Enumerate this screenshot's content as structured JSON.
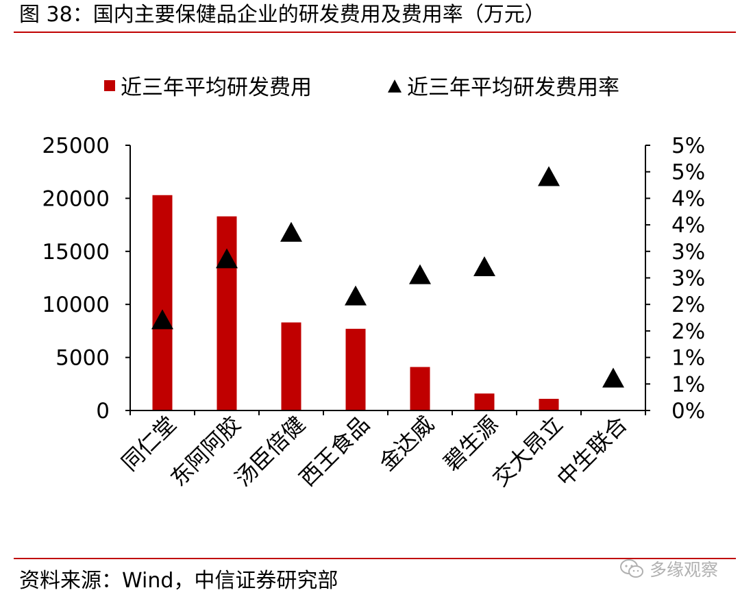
{
  "figure": {
    "title": "图 38：国内主要保健品企业的研发费用及费用率（万元）",
    "source": "资料来源：Wind，中信证券研究部",
    "watermark": "多缘观察"
  },
  "colors": {
    "bar": "#c00000",
    "marker": "#000000",
    "rule": "#c00000"
  },
  "chart_data": {
    "type": "bar",
    "categories": [
      "同仁堂",
      "东阿阿胶",
      "汤臣倍健",
      "西王食品",
      "金达威",
      "碧生源",
      "交大昂立",
      "中生联合"
    ],
    "series": [
      {
        "name": "近三年平均研发费用",
        "type": "bar",
        "axis": "left",
        "values": [
          20300,
          18300,
          8300,
          7700,
          4100,
          1600,
          1100,
          0
        ]
      },
      {
        "name": "近三年平均研发费用率",
        "type": "scatter",
        "marker": "triangle",
        "axis": "right",
        "values": [
          1.7,
          2.85,
          3.35,
          2.15,
          2.55,
          2.7,
          4.4,
          0.6
        ]
      }
    ],
    "y_left": {
      "ylim": [
        0,
        25000
      ],
      "ticks": [
        0,
        5000,
        10000,
        15000,
        20000,
        25000
      ],
      "tick_labels": [
        "0",
        "5000",
        "10000",
        "15000",
        "20000",
        "25000"
      ]
    },
    "y_right": {
      "ylim": [
        0,
        5
      ],
      "ticks": [
        0,
        0.5,
        1,
        1.5,
        2,
        2.5,
        3,
        3.5,
        4,
        4.5,
        5
      ],
      "tick_labels": [
        "0%",
        "1%",
        "1%",
        "2%",
        "2%",
        "3%",
        "3%",
        "4%",
        "4%",
        "5%",
        "5%"
      ]
    },
    "legend": {
      "position": "top",
      "entries": [
        "近三年平均研发费用",
        "近三年平均研发费用率"
      ]
    },
    "grid": false
  }
}
